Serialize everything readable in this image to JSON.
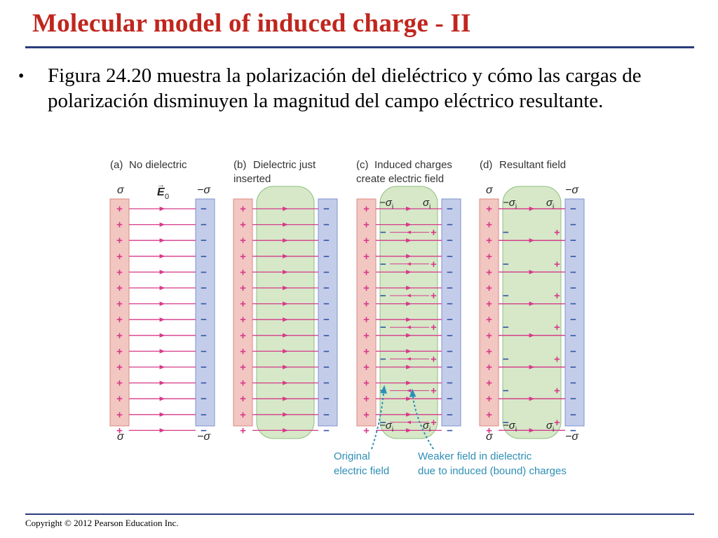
{
  "slide": {
    "title": "Molecular model of induced charge - II",
    "bullet": "Figura 24.20 muestra la polarización del dieléctrico y cómo las cargas de polarización disminuyen la magnitud del campo eléctrico resultante.",
    "copyright": "Copyright © 2012 Pearson Education Inc."
  },
  "figure": {
    "panels": [
      {
        "caption_letter": "(a)",
        "caption_line1": "No dielectric",
        "caption_line2": ""
      },
      {
        "caption_letter": "(b)",
        "caption_line1": "Dielectric just",
        "caption_line2": "inserted"
      },
      {
        "caption_letter": "(c)",
        "caption_line1": "Induced charges",
        "caption_line2": "create electric field"
      },
      {
        "caption_letter": "(d)",
        "caption_line1": "Resultant field",
        "caption_line2": ""
      }
    ],
    "symbols": {
      "sigma": "σ",
      "neg_sigma": "−σ",
      "sigma_i": "σ",
      "neg_sigma_i": "−σ",
      "subscript_i": "i",
      "field_E": "E",
      "field_sub": "0",
      "plus": "+",
      "minus": "−"
    },
    "annotations": {
      "original_line1": "Original",
      "original_line2": "electric field",
      "weaker_line1": "Weaker field in dielectric",
      "weaker_line2": "due to induced (bound) charges"
    },
    "colors": {
      "positive_plate": "#f2c6c1",
      "positive_plate_edge": "#d98b84",
      "negative_plate": "#c3cdea",
      "negative_plate_edge": "#7f93cf",
      "dielectric": "#d6e8c8",
      "dielectric_edge": "#8fbf7f",
      "field_line": "#d63a8a",
      "annotation": "#2e8fb5",
      "minus_sign": "#3a55a8"
    }
  }
}
